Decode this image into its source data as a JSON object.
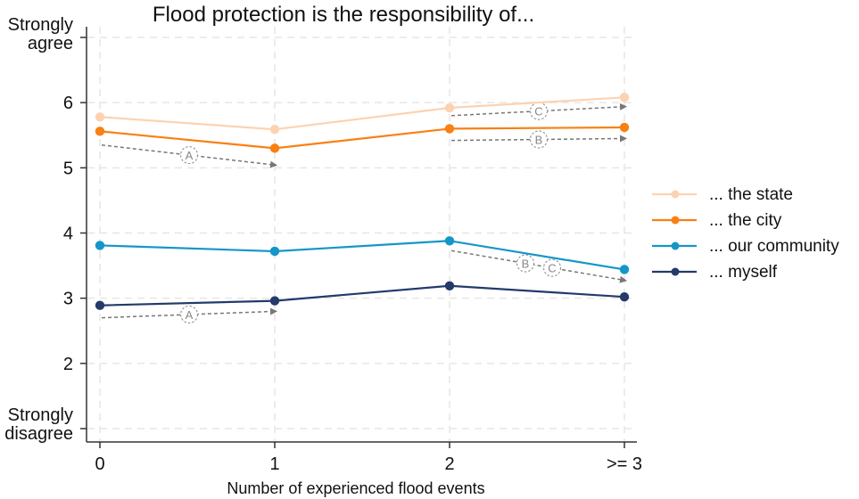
{
  "chart_data": {
    "type": "line",
    "title": "Flood protection is the responsibility of...",
    "xlabel": "Number of experienced flood events",
    "ylabel": "",
    "categories": [
      "0",
      "1",
      "2",
      ">= 3"
    ],
    "ylim": [
      1,
      7
    ],
    "yticks": [
      {
        "value": 7,
        "label": [
          "Strongly",
          "agree"
        ]
      },
      {
        "value": 6,
        "label": [
          "6"
        ]
      },
      {
        "value": 5,
        "label": [
          "5"
        ]
      },
      {
        "value": 4,
        "label": [
          "4"
        ]
      },
      {
        "value": 3,
        "label": [
          "3"
        ]
      },
      {
        "value": 2,
        "label": [
          "2"
        ]
      },
      {
        "value": 1,
        "label": [
          "Strongly",
          "disagree"
        ]
      }
    ],
    "grid": true,
    "legend_position": "right",
    "series": [
      {
        "name": "... the state",
        "color": "#FDD2B0",
        "values": [
          5.78,
          5.59,
          5.92,
          6.08
        ]
      },
      {
        "name": "... the city",
        "color": "#F98012",
        "values": [
          5.56,
          5.3,
          5.6,
          5.62
        ]
      },
      {
        "name": "... our community",
        "color": "#1696C8",
        "values": [
          3.81,
          3.72,
          3.88,
          3.44
        ]
      },
      {
        "name": "... myself",
        "color": "#233A6B",
        "values": [
          2.89,
          2.96,
          3.19,
          3.02
        ]
      }
    ],
    "annotations": [
      {
        "labels": [
          "A"
        ],
        "from": {
          "x": 0,
          "y": 5.35
        },
        "to": {
          "x": 1,
          "y": 5.04
        }
      },
      {
        "labels": [
          "A"
        ],
        "from": {
          "x": 0,
          "y": 2.7
        },
        "to": {
          "x": 1,
          "y": 2.8
        }
      },
      {
        "labels": [
          "C"
        ],
        "from": {
          "x": 2,
          "y": 5.8
        },
        "to": {
          "x": 3,
          "y": 5.94
        }
      },
      {
        "labels": [
          "B"
        ],
        "from": {
          "x": 2,
          "y": 5.42
        },
        "to": {
          "x": 3,
          "y": 5.45
        }
      },
      {
        "labels": [
          "B",
          "C"
        ],
        "from": {
          "x": 2,
          "y": 3.73
        },
        "to": {
          "x": 3,
          "y": 3.27
        }
      }
    ],
    "annotation_color": "#777777"
  }
}
